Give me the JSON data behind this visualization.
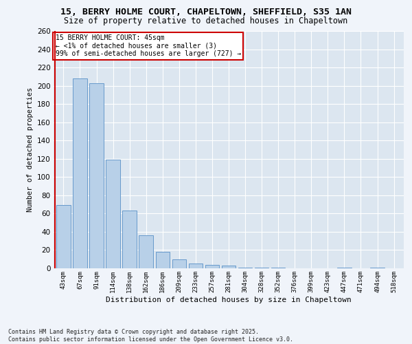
{
  "title_line1": "15, BERRY HOLME COURT, CHAPELTOWN, SHEFFIELD, S35 1AN",
  "title_line2": "Size of property relative to detached houses in Chapeltown",
  "xlabel": "Distribution of detached houses by size in Chapeltown",
  "ylabel": "Number of detached properties",
  "bar_labels": [
    "43sqm",
    "67sqm",
    "91sqm",
    "114sqm",
    "138sqm",
    "162sqm",
    "186sqm",
    "209sqm",
    "233sqm",
    "257sqm",
    "281sqm",
    "304sqm",
    "328sqm",
    "352sqm",
    "376sqm",
    "399sqm",
    "423sqm",
    "447sqm",
    "471sqm",
    "494sqm",
    "518sqm"
  ],
  "bar_values": [
    69,
    208,
    203,
    119,
    63,
    36,
    18,
    10,
    5,
    4,
    3,
    1,
    1,
    1,
    0,
    0,
    0,
    1,
    0,
    1,
    0
  ],
  "bar_color": "#b8d0e8",
  "bar_edge_color": "#6699cc",
  "highlight_color": "#cc0000",
  "ylim": [
    0,
    260
  ],
  "yticks": [
    0,
    20,
    40,
    60,
    80,
    100,
    120,
    140,
    160,
    180,
    200,
    220,
    240,
    260
  ],
  "fig_bg_color": "#f0f4fa",
  "plot_bg_color": "#dce6f0",
  "grid_color": "#ffffff",
  "annotation_text": "15 BERRY HOLME COURT: 45sqm\n← <1% of detached houses are smaller (3)\n99% of semi-detached houses are larger (727) →",
  "annotation_box_color": "#ffffff",
  "annotation_box_edge": "#cc0000",
  "footer_line1": "Contains HM Land Registry data © Crown copyright and database right 2025.",
  "footer_line2": "Contains public sector information licensed under the Open Government Licence v3.0.",
  "title1_fontsize": 9.5,
  "title2_fontsize": 8.5,
  "ylabel_fontsize": 7.5,
  "xlabel_fontsize": 8.0,
  "ytick_fontsize": 7.5,
  "xtick_fontsize": 6.5,
  "annot_fontsize": 7.0,
  "footer_fontsize": 6.0
}
